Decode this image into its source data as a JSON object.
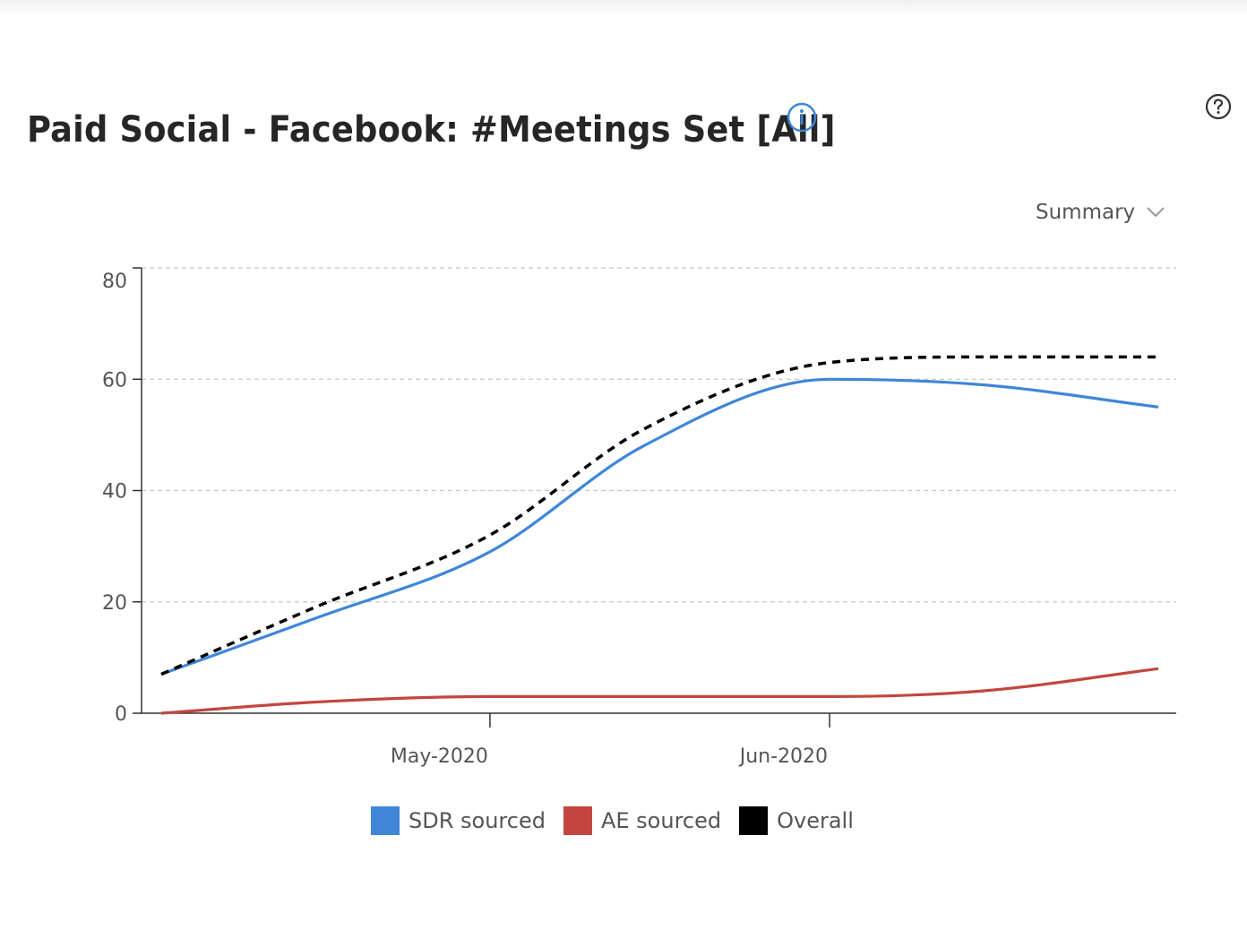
{
  "header": {
    "title": "Paid Social - Facebook: #Meetings Set [All]",
    "summary_label": "Summary"
  },
  "icons": {
    "info": "info-icon",
    "help": "help-question-icon",
    "dropdown": "chevron-down-icon"
  },
  "colors": {
    "accent": "#3b86d9",
    "sdr": "#3f86d8",
    "ae": "#c2463f",
    "overall": "#000000",
    "grid": "#c8c8c8",
    "axis": "#333333"
  },
  "chart_data": {
    "type": "line",
    "x": [
      "2020-04-01",
      "2020-04-15",
      "2020-05-01",
      "2020-05-15",
      "2020-06-01",
      "2020-06-15",
      "2020-07-01"
    ],
    "x_ticks": [
      {
        "date": "2020-05-01",
        "label": "May-2020"
      },
      {
        "date": "2020-06-01",
        "label": "Jun-2020"
      }
    ],
    "series": [
      {
        "name": "SDR sourced",
        "color": "#3f86d8",
        "dash": false,
        "values": [
          7,
          17,
          29,
          48,
          60,
          59,
          55
        ]
      },
      {
        "name": "AE sourced",
        "color": "#c2463f",
        "dash": false,
        "values": [
          0,
          2,
          3,
          3,
          3,
          4,
          8
        ]
      },
      {
        "name": "Overall",
        "color": "#000000",
        "dash": true,
        "values": [
          7,
          19,
          32,
          51,
          63,
          64,
          64
        ]
      }
    ],
    "yticks": [
      0,
      20,
      40,
      60,
      80
    ],
    "ylim": [
      0,
      80
    ],
    "grid": true,
    "legend": "bottom-center"
  }
}
